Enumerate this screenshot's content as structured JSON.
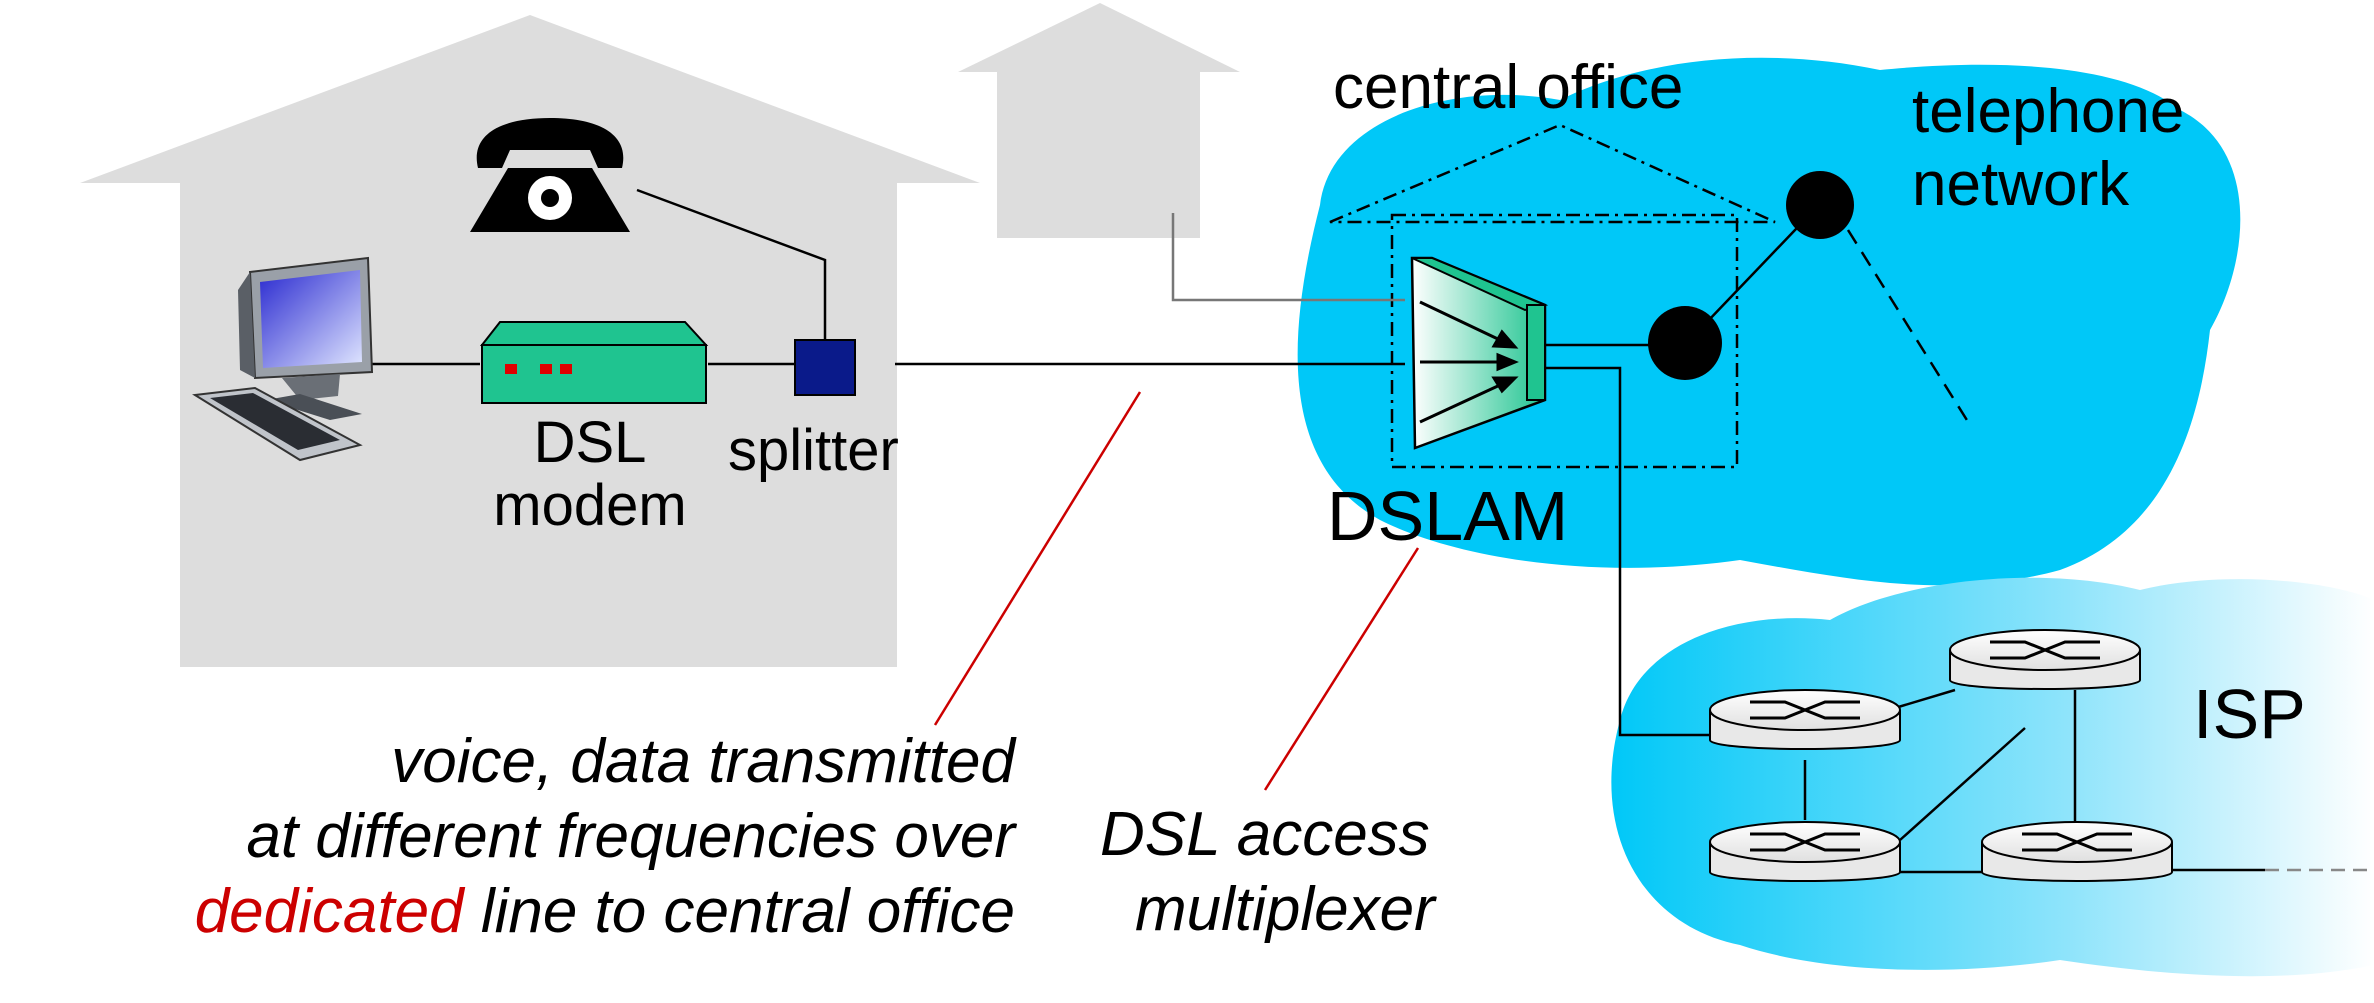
{
  "labels": {
    "central_office": "central office",
    "telephone_line1": "telephone",
    "telephone_line2": "network",
    "isp": "ISP",
    "dslam": "DSLAM",
    "dsl_modem_line1": "DSL",
    "dsl_modem_line2": "modem",
    "splitter": "splitter"
  },
  "annotations": {
    "line_note": {
      "line1": "voice, data transmitted",
      "line2": "at different frequencies over",
      "line3_highlight": "dedicated",
      "line3_rest": " line to central office"
    },
    "dslam_note": {
      "line1": "DSL access",
      "line2": "multiplexer"
    }
  },
  "colors": {
    "house": "#dddddd",
    "cloud": "#00c8f8",
    "equipment_green": "#1fc490",
    "splitter_blue": "#0a1a8a",
    "annotation_line": "#cc0000",
    "highlight_text": "#cc0000"
  },
  "icons": [
    "telephone-icon",
    "computer-icon",
    "router-icon",
    "dslam-icon"
  ]
}
